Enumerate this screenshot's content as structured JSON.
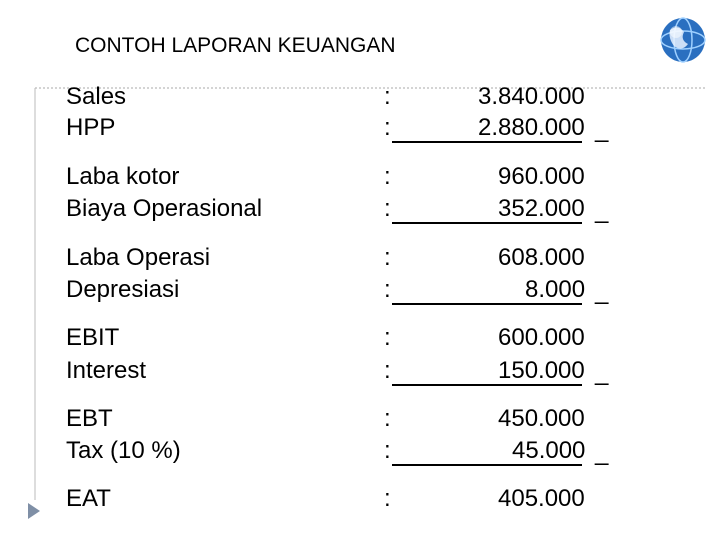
{
  "header": {
    "title": "CONTOH LAPORAN KEUANGAN"
  },
  "separator": ":",
  "subtract_mark": "_",
  "groups": [
    {
      "items": [
        {
          "label": "Sales",
          "value": "3.840.000"
        },
        {
          "label": "HPP",
          "value": "2.880.000"
        }
      ]
    },
    {
      "items": [
        {
          "label": "Laba kotor",
          "value": "960.000"
        },
        {
          "label": "Biaya Operasional",
          "value": "352.000"
        }
      ]
    },
    {
      "items": [
        {
          "label": "Laba Operasi",
          "value": "608.000"
        },
        {
          "label": "Depresiasi",
          "value": "8.000"
        }
      ]
    },
    {
      "items": [
        {
          "label": "EBIT",
          "value": "600.000"
        },
        {
          "label": "Interest",
          "value": "150.000"
        }
      ]
    },
    {
      "items": [
        {
          "label": "EBT",
          "value": "450.000"
        },
        {
          "label": "Tax (10 %)",
          "value": "45.000"
        }
      ]
    },
    {
      "items": [
        {
          "label": "EAT",
          "value": "405.000"
        }
      ]
    }
  ]
}
